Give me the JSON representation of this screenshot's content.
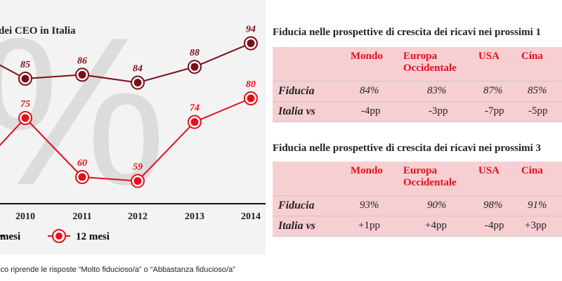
{
  "chart_data": {
    "type": "line",
    "title": "dei CEO in Italia",
    "categories": [
      "2010",
      "2011",
      "2012",
      "2013",
      "2014"
    ],
    "series": [
      {
        "name": "mesi",
        "values": [
          85,
          86,
          84,
          88,
          94
        ],
        "color": "#7a0f18"
      },
      {
        "name": "12 mesi",
        "values": [
          75,
          60,
          59,
          74,
          80
        ],
        "color": "#e3101a"
      }
    ],
    "grid": false,
    "legend": "bottom-left",
    "watermark": "%"
  },
  "colors": {
    "accent": "#e3101a",
    "dark": "#7a0f18",
    "table_bg": "#f7cfd3"
  },
  "tables": [
    {
      "title": "Fiducia nelle prospettive di crescita dei ricavi nei prossimi 1",
      "headers": [
        "Mondo",
        "Europa Occidentale",
        "USA",
        "Cina"
      ],
      "rows": [
        {
          "label": "Fiducia",
          "values": [
            "84%",
            "83%",
            "87%",
            "85%"
          ]
        },
        {
          "label": "Italia vs",
          "values": [
            "-4pp",
            "-3pp",
            "-7pp",
            "-5pp"
          ]
        }
      ]
    },
    {
      "title": "Fiducia nelle prospettive di crescita dei ricavi nei prossimi 3",
      "headers": [
        "Mondo",
        "Europa Occidentale",
        "USA",
        "Cina"
      ],
      "rows": [
        {
          "label": "Fiducia",
          "values": [
            "93%",
            "90%",
            "98%",
            "91%"
          ]
        },
        {
          "label": "Italia vs",
          "values": [
            "+1pp",
            "+4pp",
            "-4pp",
            "+3pp"
          ]
        }
      ]
    }
  ],
  "footnote": "ico riprende le risposte “Molto fiducioso/a” o “Abbastanza fiducioso/a”"
}
